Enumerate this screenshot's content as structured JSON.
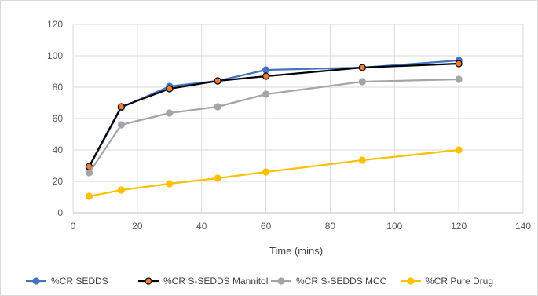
{
  "chart_data": {
    "type": "line",
    "title": "",
    "xlabel": "Time (mins)",
    "ylabel": "",
    "xlim": [
      0,
      140
    ],
    "ylim": [
      0,
      120
    ],
    "xticks": [
      0,
      20,
      40,
      60,
      80,
      100,
      120,
      140
    ],
    "yticks": [
      0,
      20,
      40,
      60,
      80,
      100,
      120
    ],
    "grid": true,
    "legend_position": "bottom",
    "x": [
      5,
      15,
      30,
      45,
      60,
      90,
      120
    ],
    "series": [
      {
        "name": "%CR SEDDS",
        "values": [
          29,
          67,
          80.5,
          84,
          91,
          92.5,
          97
        ],
        "line_color": "#4472c4",
        "marker_fill": "#4472c4",
        "marker_stroke": "#4472c4"
      },
      {
        "name": "%CR S-SEDDS Mannitol",
        "values": [
          29.5,
          67.5,
          79,
          84,
          87,
          92.5,
          95
        ],
        "line_color": "#000000",
        "marker_fill": "#ed7d31",
        "marker_stroke": "#000000"
      },
      {
        "name": "%CR S-SEDDS MCC",
        "values": [
          25.5,
          56,
          63.5,
          67.5,
          75.5,
          83.5,
          85
        ],
        "line_color": "#a5a5a5",
        "marker_fill": "#a5a5a5",
        "marker_stroke": "#a5a5a5"
      },
      {
        "name": "%CR Pure Drug",
        "values": [
          10.5,
          14.5,
          18.5,
          22,
          26,
          33.5,
          40
        ],
        "line_color": "#ffc000",
        "marker_fill": "#ffc000",
        "marker_stroke": "#ffc000"
      }
    ]
  }
}
